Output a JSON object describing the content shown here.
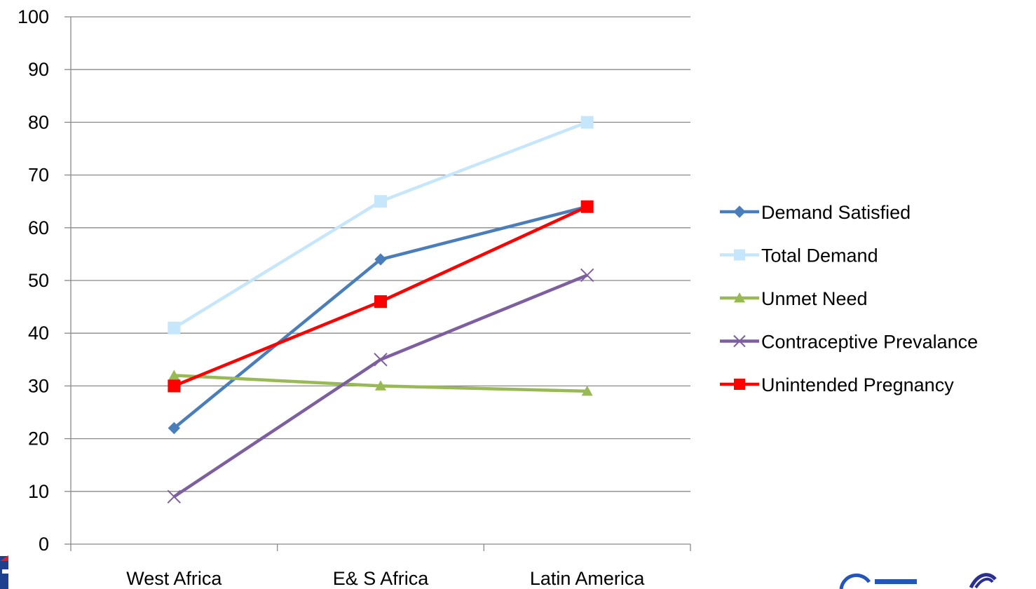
{
  "chart_data": {
    "type": "line",
    "categories": [
      "West Africa",
      "E& S Africa",
      "Latin America"
    ],
    "ylim": [
      0,
      100
    ],
    "yticks": [
      0,
      10,
      20,
      30,
      40,
      50,
      60,
      70,
      80,
      90,
      100
    ],
    "grid": true,
    "legend_position": "right",
    "series": [
      {
        "name": "Demand Satisfied",
        "values": [
          22,
          54,
          64
        ],
        "color": "#4a7ebb",
        "marker": "diamond"
      },
      {
        "name": "Total Demand",
        "values": [
          41,
          65,
          80
        ],
        "color": "#c6e7fb",
        "marker": "square"
      },
      {
        "name": "Unmet Need",
        "values": [
          32,
          30,
          29
        ],
        "color": "#98b954",
        "marker": "triangle"
      },
      {
        "name": "Contraceptive Prevalance",
        "values": [
          9,
          35,
          51
        ],
        "color": "#7d5fa0",
        "marker": "x"
      },
      {
        "name": "Unintended Pregnancy",
        "values": [
          30,
          46,
          64
        ],
        "color": "#ff0000",
        "marker": "square"
      }
    ]
  }
}
